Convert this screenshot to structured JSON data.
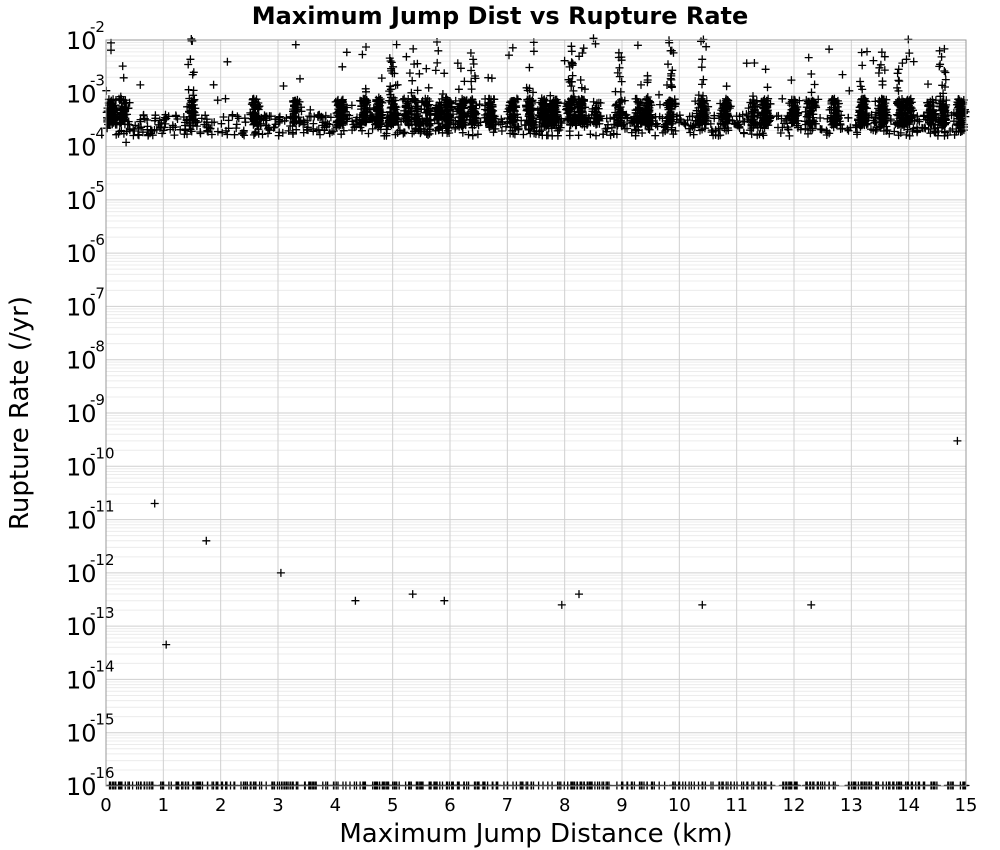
{
  "chart_data": {
    "type": "scatter",
    "title": "Maximum Jump Dist vs Rupture Rate",
    "xlabel": "Maximum Jump Distance (km)",
    "ylabel": "Rupture Rate (/yr)",
    "xlim": [
      0,
      15
    ],
    "ylim": [
      1e-16,
      0.01
    ],
    "yscale": "log",
    "grid": true,
    "marker": "plus",
    "marker_color": "#000000",
    "x_ticks": [
      "0",
      "1",
      "2",
      "3",
      "4",
      "5",
      "6",
      "7",
      "8",
      "9",
      "10",
      "11",
      "12",
      "13",
      "14",
      "15"
    ],
    "y_ticks": [
      {
        "base": "10",
        "exp": "-16"
      },
      {
        "base": "10",
        "exp": "-15"
      },
      {
        "base": "10",
        "exp": "-14"
      },
      {
        "base": "10",
        "exp": "-13"
      },
      {
        "base": "10",
        "exp": "-12"
      },
      {
        "base": "10",
        "exp": "-11"
      },
      {
        "base": "10",
        "exp": "-10"
      },
      {
        "base": "10",
        "exp": "-9"
      },
      {
        "base": "10",
        "exp": "-8"
      },
      {
        "base": "10",
        "exp": "-7"
      },
      {
        "base": "10",
        "exp": "-6"
      },
      {
        "base": "10",
        "exp": "-5"
      },
      {
        "base": "10",
        "exp": "-4"
      },
      {
        "base": "10",
        "exp": "-3"
      },
      {
        "base": "10",
        "exp": "-2"
      }
    ],
    "dense_columns_km": [
      0.1,
      0.3,
      1.5,
      2.6,
      3.3,
      4.1,
      4.5,
      4.75,
      5.0,
      5.25,
      5.4,
      5.6,
      5.8,
      5.95,
      6.2,
      6.4,
      6.7,
      7.1,
      7.4,
      7.65,
      7.8,
      8.1,
      8.3,
      8.55,
      8.95,
      9.3,
      9.45,
      9.85,
      10.4,
      10.8,
      11.3,
      11.5,
      12.0,
      12.3,
      12.7,
      13.2,
      13.55,
      13.85,
      14.0,
      14.4,
      14.6,
      14.9
    ],
    "sample_points": [
      {
        "x": 1.05,
        "y": 4.5e-14
      },
      {
        "x": 0.35,
        "y": 0.00012
      },
      {
        "x": 4.6,
        "y": 0.0005
      },
      {
        "x": 5.5,
        "y": 0.0005
      },
      {
        "x": 7.6,
        "y": 0.0008
      },
      {
        "x": 7.75,
        "y": 0.0009
      },
      {
        "x": 9.45,
        "y": 0.00085
      },
      {
        "x": 4.35,
        "y": 3e-13
      },
      {
        "x": 5.35,
        "y": 4e-13
      },
      {
        "x": 5.9,
        "y": 3e-13
      },
      {
        "x": 7.95,
        "y": 2.5e-13
      },
      {
        "x": 8.25,
        "y": 4e-13
      },
      {
        "x": 10.4,
        "y": 2.5e-13
      },
      {
        "x": 12.3,
        "y": 2.5e-13
      },
      {
        "x": 1.75,
        "y": 4e-12
      },
      {
        "x": 3.05,
        "y": 1e-12
      },
      {
        "x": 0.85,
        "y": 2e-11
      },
      {
        "x": 14.85,
        "y": 3e-10
      },
      {
        "x": 14.9,
        "y": 0.00025
      },
      {
        "x": 12.2,
        "y": 0.00045
      }
    ]
  }
}
